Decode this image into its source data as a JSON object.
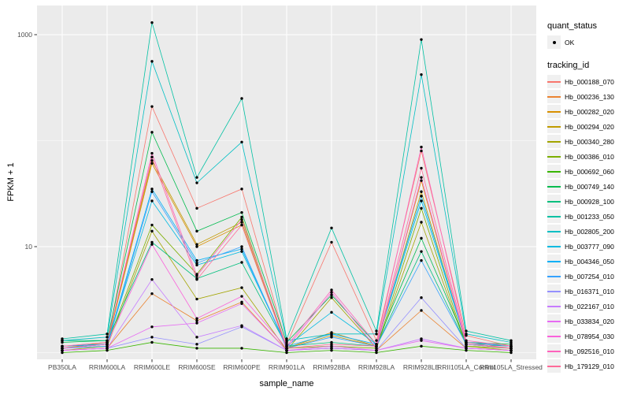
{
  "figure": {
    "panel_bg": "#EBEBEB",
    "grid_color": "#FFFFFF",
    "tick_label_color": "#4D4D4D",
    "point_color": "#000000"
  },
  "legend": {
    "quant_status_title": "quant_status",
    "quant_status_items": [
      {
        "label": "OK",
        "symbol": "point"
      }
    ],
    "tracking_id_title": "tracking_id"
  },
  "chart_data": {
    "type": "line",
    "title": "",
    "xlabel": "sample_name",
    "ylabel": "FPKM + 1",
    "y_scale": "log10",
    "y_major_ticks": [
      10,
      1000
    ],
    "y_minor_gridlines": [
      1,
      100
    ],
    "ylim": [
      0.86,
      1870
    ],
    "grid": true,
    "legend_position": "right",
    "categories": [
      "PB350LA",
      "RRIM600LA",
      "RRIM600LE",
      "RRIM600SE",
      "RRIM600PE",
      "RRIM901LA",
      "RRIM928BA",
      "RRIM928LA",
      "RRIM928LE",
      "RRII105LA_Control",
      "RRII105LA_Stressed"
    ],
    "series": [
      {
        "name": "Hb_000188_070",
        "color": "#F8766D",
        "values": [
          1.1,
          1.2,
          210,
          23,
          35,
          1.2,
          11,
          1.3,
          80,
          1.45,
          1.15
        ]
      },
      {
        "name": "Hb_000236_130",
        "color": "#EA8331",
        "values": [
          1.05,
          1.1,
          3.6,
          2.0,
          3.0,
          1.05,
          1.1,
          1.05,
          2.5,
          1.1,
          1.05
        ]
      },
      {
        "name": "Hb_000282_020",
        "color": "#D89000",
        "values": [
          1.1,
          1.2,
          61,
          10,
          16,
          1.1,
          1.55,
          1.15,
          42,
          1.2,
          1.1
        ]
      },
      {
        "name": "Hb_000294_020",
        "color": "#C09B00",
        "values": [
          1.1,
          1.25,
          65,
          10.5,
          17,
          1.1,
          1.45,
          1.15,
          33,
          1.2,
          1.1
        ]
      },
      {
        "name": "Hb_000340_280",
        "color": "#A3A500",
        "values": [
          1.05,
          1.15,
          14,
          3.2,
          4.1,
          1.05,
          3.3,
          1.1,
          17,
          1.15,
          1.05
        ]
      },
      {
        "name": "Hb_000386_010",
        "color": "#7CAE00",
        "values": [
          1.1,
          1.2,
          16,
          5.5,
          19,
          1.1,
          1.15,
          1.1,
          23,
          1.15,
          1.1
        ]
      },
      {
        "name": "Hb_000692_060",
        "color": "#39B600",
        "values": [
          1.0,
          1.05,
          1.25,
          1.1,
          1.1,
          1.0,
          1.05,
          1.0,
          1.15,
          1.05,
          1.0
        ]
      },
      {
        "name": "Hb_000749_140",
        "color": "#00BB4E",
        "values": [
          1.25,
          1.3,
          120,
          14,
          21,
          1.25,
          3.5,
          1.2,
          12,
          1.25,
          1.2
        ]
      },
      {
        "name": "Hb_000928_100",
        "color": "#00BF7D",
        "values": [
          1.3,
          1.3,
          11,
          5.0,
          7.1,
          1.15,
          1.25,
          1.15,
          9,
          1.2,
          1.15
        ]
      },
      {
        "name": "Hb_001233_050",
        "color": "#00C1A3",
        "values": [
          1.35,
          1.5,
          1300,
          45,
          250,
          1.35,
          15,
          1.6,
          900,
          1.6,
          1.3
        ]
      },
      {
        "name": "Hb_002805_200",
        "color": "#00BFC4",
        "values": [
          1.3,
          1.4,
          560,
          40,
          97,
          1.3,
          1.5,
          1.5,
          420,
          1.5,
          1.25
        ]
      },
      {
        "name": "Hb_003777_090",
        "color": "#00BAE0",
        "values": [
          1.15,
          1.2,
          27,
          6.7,
          9.0,
          1.15,
          2.4,
          1.2,
          27,
          1.25,
          1.15
        ]
      },
      {
        "name": "Hb_004346_050",
        "color": "#00B0F6",
        "values": [
          1.15,
          1.2,
          35,
          7.4,
          9.5,
          1.15,
          1.5,
          1.2,
          30,
          1.25,
          1.15
        ]
      },
      {
        "name": "Hb_007254_010",
        "color": "#35A2FF",
        "values": [
          1.1,
          1.15,
          33,
          7.0,
          10,
          1.1,
          1.4,
          1.15,
          7.4,
          1.2,
          1.1
        ]
      },
      {
        "name": "Hb_016371_010",
        "color": "#9590FF",
        "values": [
          1.05,
          1.1,
          1.4,
          1.2,
          1.75,
          1.05,
          1.1,
          1.05,
          3.3,
          1.1,
          1.05
        ]
      },
      {
        "name": "Hb_022167_010",
        "color": "#C77CFF",
        "values": [
          1.05,
          1.1,
          4.9,
          1.4,
          1.8,
          1.05,
          1.1,
          1.05,
          1.35,
          1.1,
          1.05
        ]
      },
      {
        "name": "Hb_033834_020",
        "color": "#E76BF3",
        "values": [
          1.05,
          1.1,
          1.75,
          1.9,
          2.9,
          1.05,
          1.15,
          1.05,
          1.3,
          1.1,
          1.05
        ]
      },
      {
        "name": "Hb_078954_030",
        "color": "#FA62DB",
        "values": [
          1.1,
          1.2,
          10.5,
          2.1,
          3.4,
          1.1,
          3.7,
          1.1,
          45,
          1.2,
          1.1
        ]
      },
      {
        "name": "Hb_092516_010",
        "color": "#FF62BC",
        "values": [
          1.15,
          1.25,
          76,
          5.3,
          18,
          1.15,
          3.9,
          1.2,
          87,
          1.3,
          1.15
        ]
      },
      {
        "name": "Hb_179129_010",
        "color": "#FF6A98",
        "values": [
          1.15,
          1.25,
          70,
          4.9,
          16,
          1.1,
          1.2,
          1.15,
          55,
          1.25,
          1.1
        ]
      }
    ]
  }
}
